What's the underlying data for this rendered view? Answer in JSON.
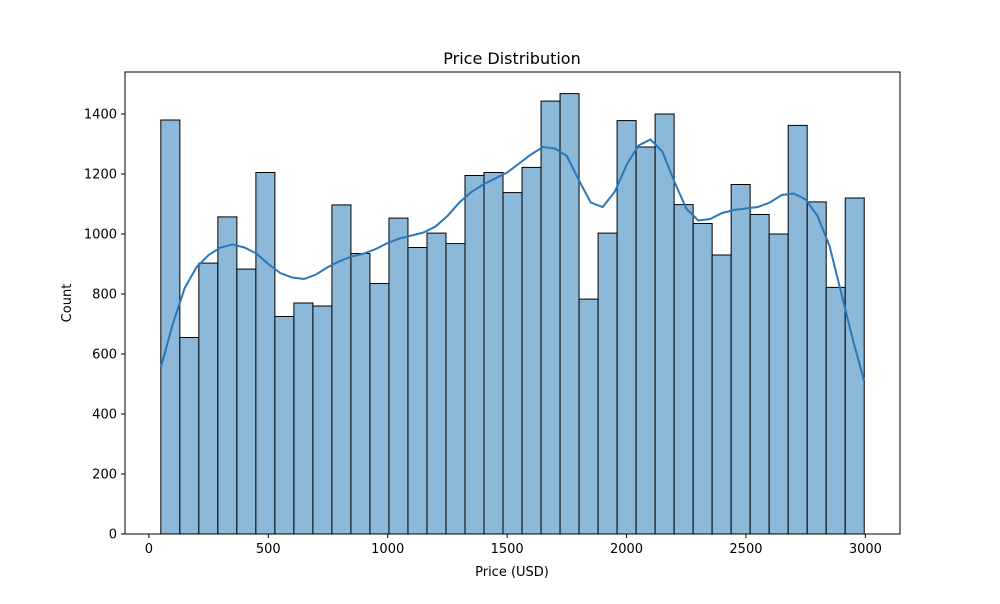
{
  "chart_data": {
    "type": "bar",
    "title": "Price Distribution",
    "xlabel": "Price (USD)",
    "ylabel": "Count",
    "xlim": [
      -100,
      3145
    ],
    "ylim": [
      0,
      1540
    ],
    "xticks": [
      0,
      500,
      1000,
      1500,
      2000,
      2500,
      3000
    ],
    "yticks": [
      0,
      200,
      400,
      600,
      800,
      1000,
      1200,
      1400
    ],
    "grid": false,
    "bar_color": "#8cb8d9",
    "edge_color": "#000000",
    "kde_color": "#2a78b8",
    "bins": {
      "start": 50,
      "width": 79.6,
      "counts": [
        1380,
        655,
        903,
        1057,
        883,
        1205,
        725,
        770,
        760,
        1097,
        935,
        835,
        1053,
        955,
        1003,
        968,
        1195,
        1205,
        1138,
        1222,
        1443,
        1468,
        783,
        1003,
        1378,
        1290,
        1400,
        1098,
        1035,
        930,
        1165,
        1065,
        1000,
        1362,
        1107,
        822,
        1120
      ]
    },
    "kde": {
      "x": [
        50,
        100,
        150,
        200,
        250,
        300,
        350,
        400,
        450,
        500,
        550,
        600,
        650,
        700,
        750,
        800,
        850,
        900,
        950,
        1000,
        1050,
        1100,
        1150,
        1200,
        1250,
        1300,
        1350,
        1400,
        1450,
        1500,
        1550,
        1600,
        1650,
        1700,
        1750,
        1800,
        1850,
        1900,
        1950,
        2000,
        2050,
        2100,
        2150,
        2200,
        2250,
        2300,
        2350,
        2400,
        2450,
        2500,
        2550,
        2600,
        2650,
        2700,
        2750,
        2800,
        2850,
        2900,
        2950,
        2995
      ],
      "y": [
        555,
        700,
        820,
        890,
        930,
        955,
        965,
        955,
        935,
        900,
        870,
        855,
        850,
        865,
        890,
        910,
        925,
        935,
        950,
        970,
        985,
        995,
        1005,
        1025,
        1060,
        1105,
        1140,
        1165,
        1185,
        1205,
        1235,
        1265,
        1290,
        1285,
        1260,
        1180,
        1105,
        1090,
        1140,
        1230,
        1295,
        1315,
        1275,
        1175,
        1085,
        1045,
        1050,
        1070,
        1080,
        1085,
        1090,
        1105,
        1130,
        1135,
        1115,
        1060,
        960,
        800,
        640,
        510
      ]
    }
  }
}
